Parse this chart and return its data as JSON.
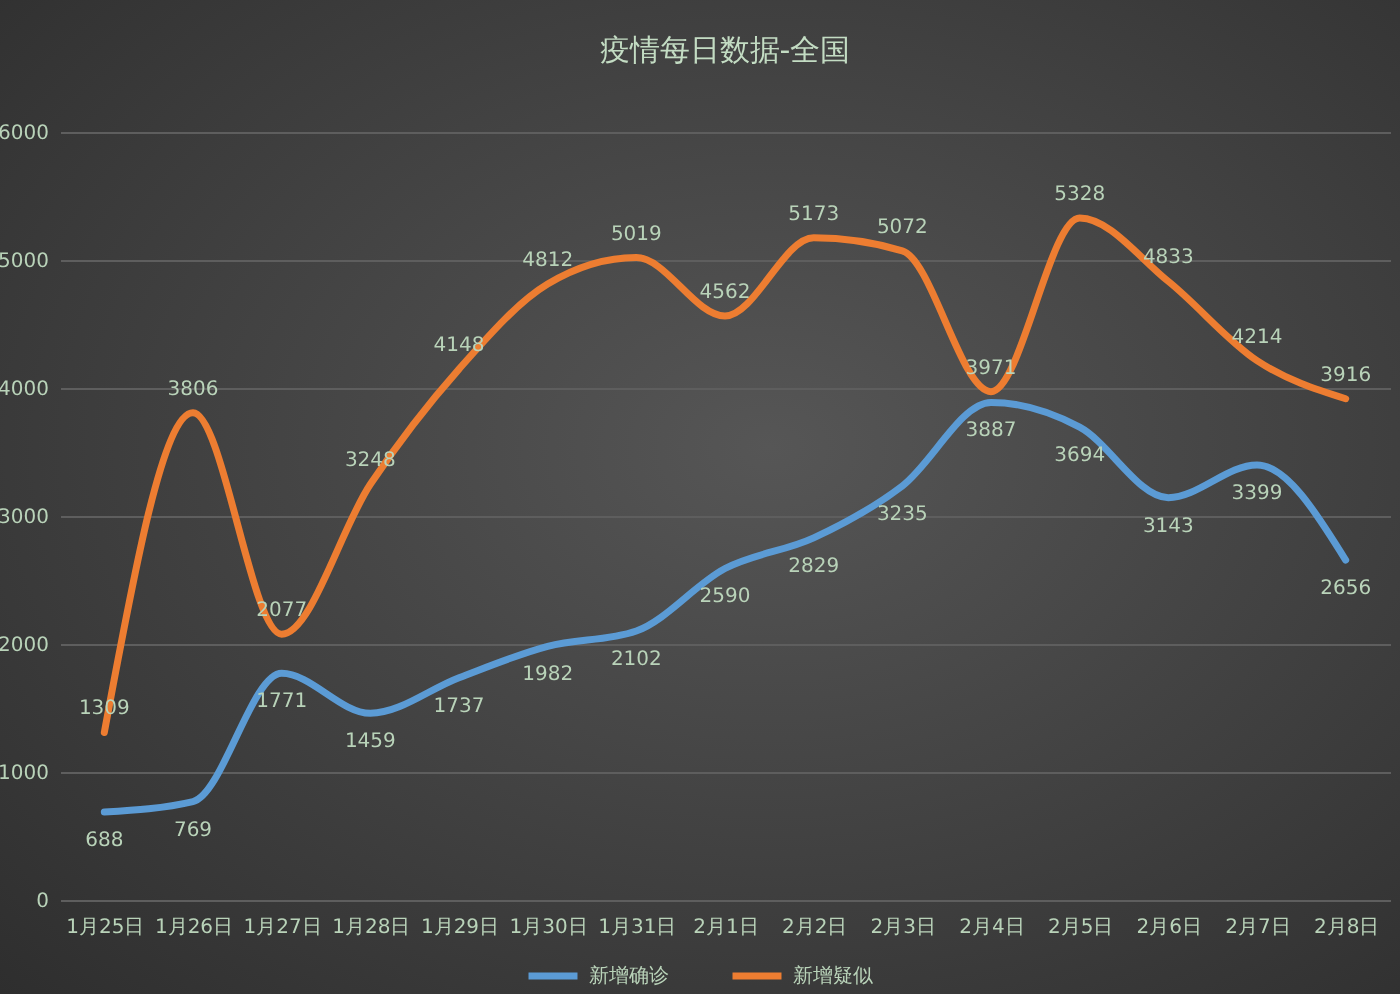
{
  "chart_data": {
    "type": "line",
    "title": "疫情每日数据-全国",
    "categories": [
      "1月25日",
      "1月26日",
      "1月27日",
      "1月28日",
      "1月29日",
      "1月30日",
      "1月31日",
      "2月1日",
      "2月2日",
      "2月3日",
      "2月4日",
      "2月5日",
      "2月6日",
      "2月7日",
      "2月8日"
    ],
    "series": [
      {
        "name": "新增确诊",
        "color": "#5b9bd5",
        "values": [
          688,
          769,
          1771,
          1459,
          1737,
          1982,
          2102,
          2590,
          2829,
          3235,
          3887,
          3694,
          3143,
          3399,
          2656
        ]
      },
      {
        "name": "新增疑似",
        "color": "#ed7d31",
        "values": [
          1309,
          3806,
          2077,
          3248,
          4148,
          4812,
          5019,
          4562,
          5173,
          5072,
          3971,
          5328,
          4833,
          4214,
          3916
        ]
      }
    ],
    "ylim": [
      0,
      6000
    ],
    "yticks": [
      0,
      1000,
      2000,
      3000,
      4000,
      5000,
      6000
    ],
    "grid": "y",
    "legend": "bottom",
    "data_labels": true
  }
}
